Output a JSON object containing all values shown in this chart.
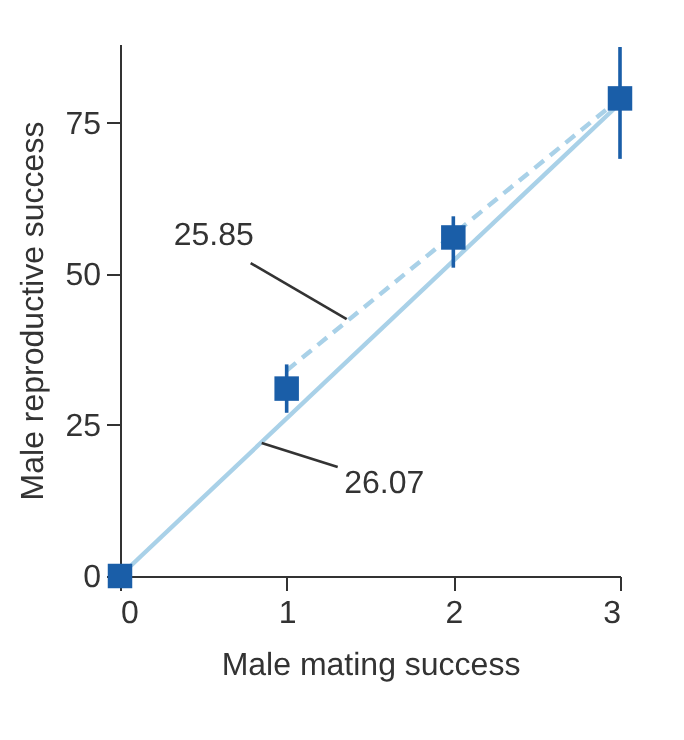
{
  "chart_data": {
    "type": "scatter",
    "xlabel": "Male mating success",
    "ylabel": "Male reproductive success",
    "xlim": [
      0,
      3
    ],
    "xticks": [
      0,
      1,
      2,
      3
    ],
    "ylim": [
      0,
      88
    ],
    "yticks": [
      0,
      25,
      50,
      75
    ],
    "grid": false,
    "series": [
      {
        "type": "line",
        "color": "#a9d1e8",
        "x": [
          0,
          3
        ],
        "values": [
          0,
          78.2
        ],
        "line_style": "solid"
      },
      {
        "type": "line",
        "color": "#a9d1e8",
        "x": [
          1,
          3
        ],
        "values": [
          34,
          79
        ],
        "line_style": "dashed"
      },
      {
        "color": "#1a5ea8",
        "x": [
          0,
          1,
          2,
          3
        ],
        "values": [
          0,
          31,
          56,
          79
        ],
        "marker": "square",
        "errors": [
          null,
          [
            27,
            35
          ],
          [
            51,
            59.5
          ],
          [
            69,
            87.5
          ]
        ]
      }
    ],
    "annotations": [
      {
        "text": "25.85",
        "x": 1.36,
        "y": 42.5
      },
      {
        "text": "26.07",
        "x": 0.85,
        "y": 22
      }
    ]
  }
}
